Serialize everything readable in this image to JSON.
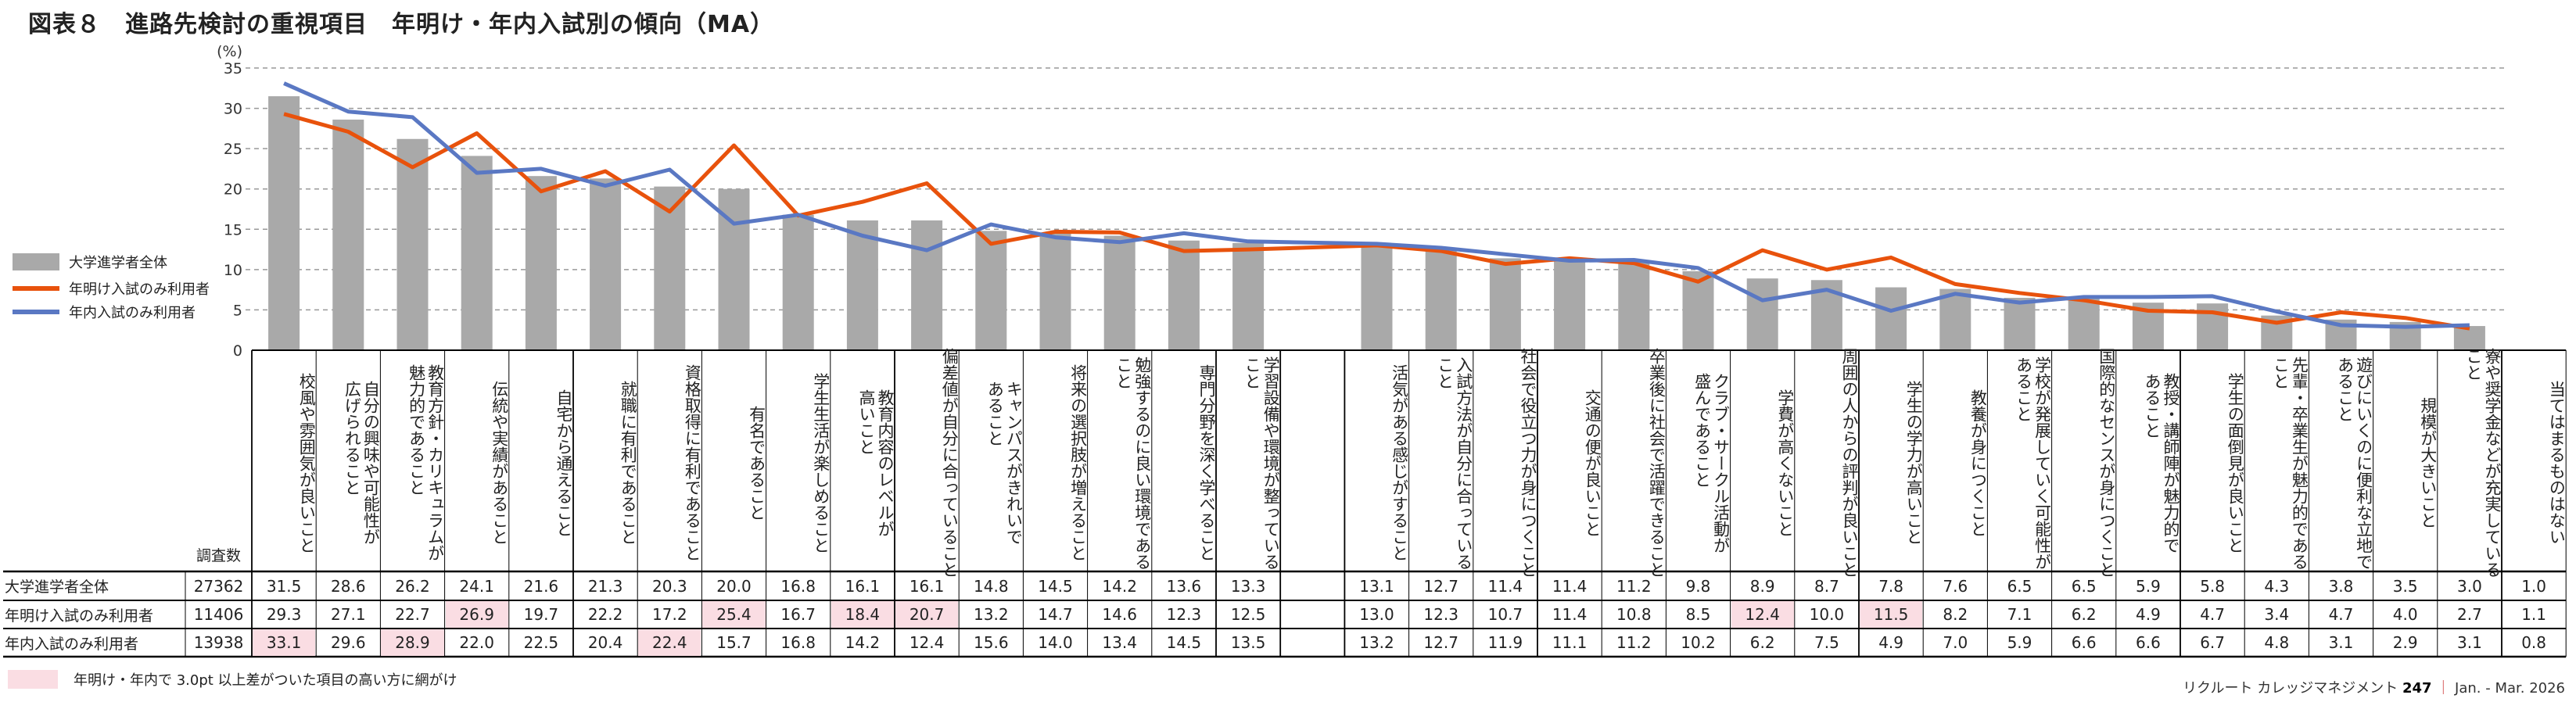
{
  "title": "図表８　進路先検討の重視項目　年明け・年内入試別の傾向（MA）",
  "legend": [
    {
      "name": "大学進学者全体",
      "color": "#a9a9a9"
    },
    {
      "name": "年明け入試のみ利用者",
      "color": "#e8520c"
    },
    {
      "name": "年内入試のみ利用者",
      "color": "#5a78c3"
    }
  ],
  "chart_data": {
    "type": "bar",
    "ylabel": "(%)",
    "ylim": [
      0,
      35
    ],
    "yticks": [
      0,
      5,
      10,
      15,
      20,
      25,
      30,
      35
    ],
    "grid": true,
    "legend_position": "left",
    "categories": [
      "校風や雰囲気が良いこと",
      "自分の興味や可能性が\n広げられること",
      "教育方針・カリキュラムが\n魅力的であること",
      "伝統や実績があること",
      "自宅から通えること",
      "就職に有利であること",
      "資格取得に有利であること",
      "有名であること",
      "学生生活が楽しめること",
      "教育内容のレベルが\n高いこと",
      "偏差値が自分に合っていること",
      "キャンパスがきれいで\nあること",
      "将来の選択肢が増えること",
      "勉強するのに良い環境である\nこと",
      "専門分野を深く学べること",
      "学習設備や環境が整っている\nこと",
      "活気がある感じがすること",
      "入試方法が自分に合っている\nこと",
      "社会で役立つ力が身につくこと",
      "交通の便が良いこと",
      "卒業後に社会で活躍できること",
      "クラブ・サークル活動が\n盛んであること",
      "学費が高くないこと",
      "周囲の人からの評判が良いこと",
      "学生の学力が高いこと",
      "教養が身につくこと",
      "学校が発展していく可能性が\nあること",
      "国際的なセンスが身につくこと",
      "教授・講師陣が魅力的で\nあること",
      "学生の面倒見が良いこと",
      "先輩・卒業生が魅力的である\nこと",
      "遊びにいくのに便利な立地で\nあること",
      "規模が大きいこと",
      "寮や奨学金などが充実している\nこと",
      "当てはまるものはない"
    ],
    "series": [
      {
        "name": "大学進学者全体",
        "type": "bar",
        "n": "27362",
        "values": [
          31.5,
          28.6,
          26.2,
          24.1,
          21.6,
          21.3,
          20.3,
          20.0,
          16.8,
          16.1,
          16.1,
          14.8,
          14.5,
          14.2,
          13.6,
          13.3,
          13.1,
          12.7,
          11.4,
          11.4,
          11.2,
          9.8,
          8.9,
          8.7,
          7.8,
          7.6,
          6.5,
          6.5,
          5.9,
          5.8,
          4.3,
          3.8,
          3.5,
          3.0,
          1.0
        ],
        "highlight": []
      },
      {
        "name": "年明け入試のみ利用者",
        "type": "line",
        "n": "11406",
        "values": [
          29.3,
          27.1,
          22.7,
          26.9,
          19.7,
          22.2,
          17.2,
          25.4,
          16.7,
          18.4,
          20.7,
          13.2,
          14.7,
          14.6,
          12.3,
          12.5,
          13.0,
          12.3,
          10.7,
          11.4,
          10.8,
          8.5,
          12.4,
          10.0,
          11.5,
          8.2,
          7.1,
          6.2,
          4.9,
          4.7,
          3.4,
          4.7,
          4.0,
          2.7,
          1.1
        ],
        "highlight": [
          3,
          7,
          9,
          10,
          22,
          24
        ]
      },
      {
        "name": "年内入試のみ利用者",
        "type": "line",
        "n": "13938",
        "values": [
          33.1,
          29.6,
          28.9,
          22.0,
          22.5,
          20.4,
          22.4,
          15.7,
          16.8,
          14.2,
          12.4,
          15.6,
          14.0,
          13.4,
          14.5,
          13.5,
          13.2,
          12.7,
          11.9,
          11.1,
          11.2,
          10.2,
          6.2,
          7.5,
          4.9,
          7.0,
          5.9,
          6.6,
          6.6,
          6.7,
          4.8,
          3.1,
          2.9,
          3.1,
          0.8
        ],
        "highlight": [
          0,
          2,
          6
        ]
      }
    ],
    "plotted_count": 34
  },
  "table": {
    "n_header": "調査数"
  },
  "footnote": "年明け・年内で 3.0pt 以上差がついた項目の高い方に網がけ",
  "footer": {
    "publication": "リクルート カレッジマネジメント",
    "issue": "247",
    "period": "Jan. - Mar. 2026"
  }
}
